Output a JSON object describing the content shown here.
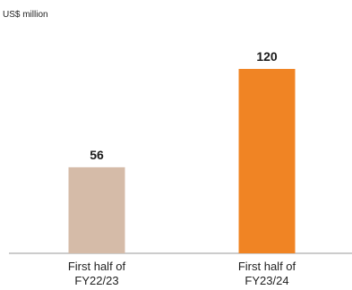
{
  "chart_data": {
    "type": "bar",
    "unit_label": "US$ million",
    "categories": [
      [
        "First half of",
        "FY22/23"
      ],
      [
        "First half of",
        "FY23/24"
      ]
    ],
    "values": [
      56,
      120
    ],
    "value_labels": [
      "56",
      "120"
    ],
    "colors": [
      "#d5bba8",
      "#f08424"
    ],
    "ylim": [
      0,
      140
    ],
    "grid": false,
    "legend": "none"
  }
}
